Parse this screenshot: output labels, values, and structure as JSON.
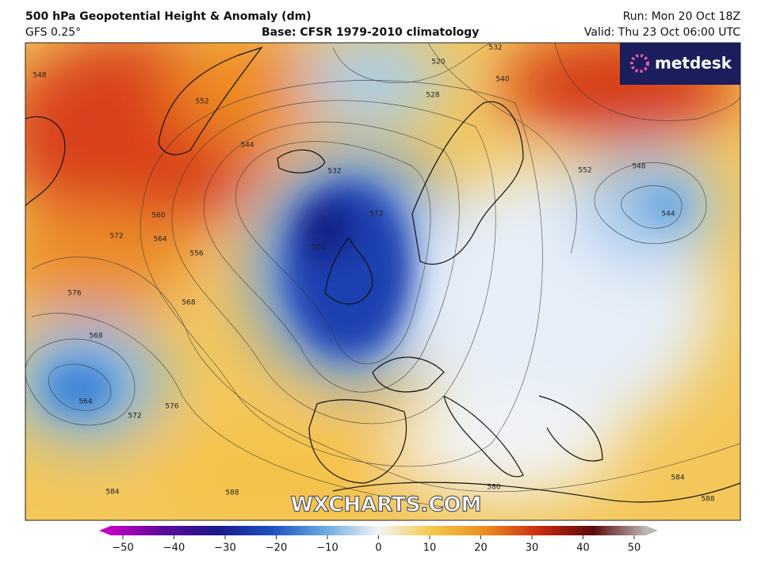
{
  "header": {
    "title": "500 hPa Geopotential Height & Anomaly (dm)",
    "model": "GFS 0.25°",
    "base": "Base: CFSR 1979-2010 climatology",
    "run": "Run: Mon 20 Oct 18Z",
    "valid": "Valid: Thu 23 Oct 06:00 UTC"
  },
  "logo": "metdesk",
  "watermark": "WXCHARTS.COM",
  "colorbar": {
    "ticks": [
      {
        "value": -50,
        "label": "−50"
      },
      {
        "value": -40,
        "label": "−40"
      },
      {
        "value": -30,
        "label": "−30"
      },
      {
        "value": -20,
        "label": "−20"
      },
      {
        "value": -10,
        "label": "−10"
      },
      0,
      10,
      20,
      30,
      40,
      50
    ]
  },
  "contour_labels": [
    548,
    552,
    544,
    532,
    520,
    528,
    532,
    540,
    552,
    548,
    544,
    560,
    564,
    572,
    556,
    576,
    568,
    568,
    564,
    572,
    576,
    584,
    588,
    580,
    584,
    588,
    572,
    520
  ]
}
